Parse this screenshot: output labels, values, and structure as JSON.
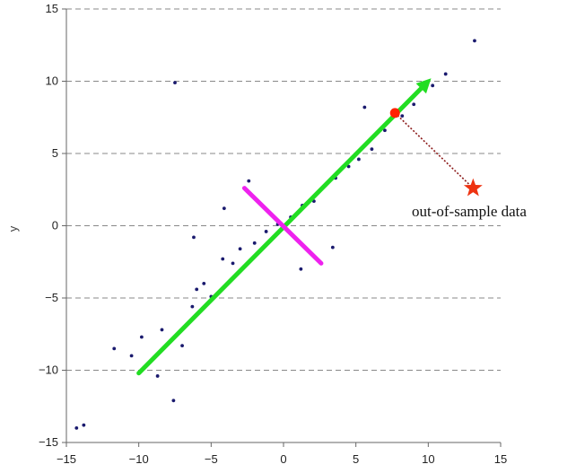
{
  "chart_data": {
    "type": "scatter",
    "title": "",
    "xlabel": "",
    "ylabel": "y",
    "xlim": [
      -15,
      15
    ],
    "ylim": [
      -15,
      15
    ],
    "x_ticks": [
      -15,
      -10,
      -5,
      0,
      5,
      10,
      15
    ],
    "y_ticks": [
      -15,
      -10,
      -5,
      0,
      5,
      10,
      15
    ],
    "grid": {
      "horizontal": true,
      "vertical": false,
      "style": "dashed"
    },
    "colors": {
      "points": "#1a1a6e",
      "principal_axis": "#22dd22",
      "minor_axis": "#ee22ee",
      "sample_point": "#ff2200",
      "star": "#ee3311",
      "projection_line": "#8b1a1a",
      "grid": "#888888",
      "axis": "#666666"
    },
    "series": [
      {
        "kind": "points",
        "points": [
          [
            -11.7,
            -8.5
          ],
          [
            -13.8,
            -13.8
          ],
          [
            -14.3,
            -14.0
          ],
          [
            -10.5,
            -9.0
          ],
          [
            -7.6,
            -12.1
          ],
          [
            -7.5,
            9.9
          ],
          [
            -8.7,
            -10.4
          ],
          [
            -9.8,
            -7.7
          ],
          [
            -8.4,
            -7.2
          ],
          [
            -7.0,
            -8.3
          ],
          [
            -6.3,
            -5.6
          ],
          [
            -6.0,
            -4.4
          ],
          [
            -5.5,
            -4.0
          ],
          [
            -5.0,
            -4.9
          ],
          [
            -4.2,
            -2.3
          ],
          [
            -3.5,
            -2.6
          ],
          [
            -3.0,
            -1.6
          ],
          [
            -2.0,
            -1.2
          ],
          [
            -1.2,
            -0.4
          ],
          [
            -0.4,
            0.1
          ],
          [
            0.5,
            0.6
          ],
          [
            1.3,
            1.4
          ],
          [
            2.1,
            1.7
          ],
          [
            2.9,
            2.8
          ],
          [
            3.6,
            3.3
          ],
          [
            4.5,
            4.1
          ],
          [
            5.2,
            4.6
          ],
          [
            6.1,
            5.3
          ],
          [
            7.0,
            6.6
          ],
          [
            8.2,
            7.6
          ],
          [
            9.0,
            8.4
          ],
          [
            10.3,
            9.7
          ],
          [
            11.2,
            10.5
          ],
          [
            13.2,
            12.8
          ],
          [
            -4.1,
            1.2
          ],
          [
            -2.4,
            3.1
          ],
          [
            1.2,
            -3.0
          ],
          [
            3.4,
            -1.5
          ],
          [
            5.6,
            8.2
          ],
          [
            -6.2,
            -0.8
          ]
        ]
      }
    ],
    "principal_axis": {
      "from": [
        -10,
        -10.2
      ],
      "to": [
        10.2,
        10.2
      ]
    },
    "minor_axis": {
      "from": [
        -2.7,
        2.6
      ],
      "to": [
        2.6,
        -2.6
      ]
    },
    "sample_point": [
      7.7,
      7.8
    ],
    "out_of_sample_point": [
      13.1,
      2.6
    ],
    "annotation": {
      "text": "out-of-sample data"
    }
  }
}
